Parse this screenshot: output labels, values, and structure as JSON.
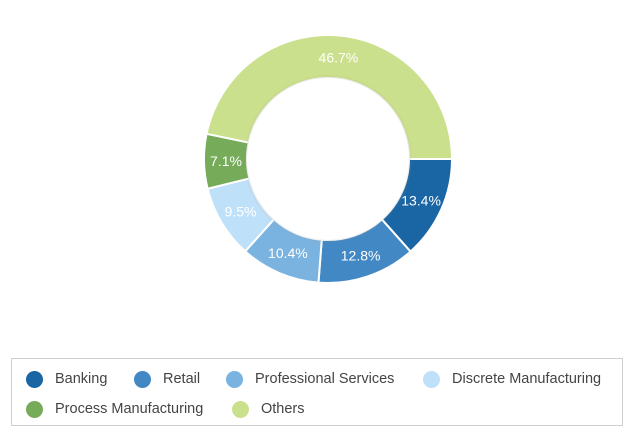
{
  "chart_data": {
    "type": "pie",
    "variant": "donut",
    "title": "",
    "categories": [
      "Banking",
      "Retail",
      "Professional Services",
      "Discrete Manufacturing",
      "Process Manufacturing",
      "Others"
    ],
    "values": [
      13.4,
      12.8,
      10.4,
      9.5,
      7.1,
      46.7
    ],
    "value_labels": [
      "13.4%",
      "12.8%",
      "10.4%",
      "9.5%",
      "7.1%",
      "46.7%"
    ],
    "colors": [
      "#1a65a4",
      "#4288c4",
      "#7ab3e0",
      "#bfe0f9",
      "#76ab59",
      "#cbe08c"
    ],
    "legend_position": "bottom"
  },
  "legend": {
    "items": [
      {
        "label": "Banking",
        "color": "#1a65a4"
      },
      {
        "label": "Retail",
        "color": "#4288c4"
      },
      {
        "label": "Professional Services",
        "color": "#7ab3e0"
      },
      {
        "label": "Discrete Manufacturing",
        "color": "#bfe0f9"
      },
      {
        "label": "Process Manufacturing",
        "color": "#76ab59"
      },
      {
        "label": "Others",
        "color": "#cbe08c"
      }
    ]
  }
}
